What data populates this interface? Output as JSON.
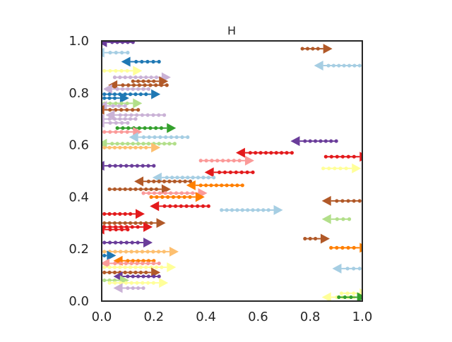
{
  "chart_data": {
    "type": "scatter",
    "title": "H",
    "xlabel": "",
    "ylabel": "",
    "xlim": [
      0.0,
      1.0
    ],
    "ylim": [
      0.0,
      1.0
    ],
    "grid": false,
    "legend": "none",
    "x_ticks": [
      "0.0",
      "0.2",
      "0.4",
      "0.6",
      "0.8",
      "1.0"
    ],
    "y_ticks": [
      "0.0",
      "0.2",
      "0.4",
      "0.6",
      "0.8",
      "1.0"
    ],
    "palette": {
      "lightblue": "#a6cee3",
      "blue": "#1f78b4",
      "lightgreen": "#b2df8a",
      "green": "#33a02c",
      "pink": "#fb9a99",
      "red": "#e31a1c",
      "lightorange": "#fdbf6f",
      "orange": "#ff7f00",
      "lavender": "#cab2d6",
      "purple": "#6a3d9a",
      "yellow": "#ffff99",
      "brown": "#b15928"
    },
    "series": [
      {
        "color": "purple",
        "dir": "left",
        "y": 0.995,
        "x_start": 0.12,
        "x_end": 0.02
      },
      {
        "color": "brown",
        "dir": "right",
        "y": 0.97,
        "x_start": 0.77,
        "x_end": 0.85
      },
      {
        "color": "lightblue",
        "dir": "left",
        "y": 0.955,
        "x_start": 0.1,
        "x_end": 0.01
      },
      {
        "color": "blue",
        "dir": "left",
        "y": 0.92,
        "x_start": 0.22,
        "x_end": 0.11
      },
      {
        "color": "lightblue",
        "dir": "left",
        "y": 0.905,
        "x_start": 0.99,
        "x_end": 0.85
      },
      {
        "color": "yellow",
        "dir": "right",
        "y": 0.885,
        "x_start": 0.01,
        "x_end": 0.12
      },
      {
        "color": "lavender",
        "dir": "right",
        "y": 0.86,
        "x_start": 0.05,
        "x_end": 0.23
      },
      {
        "color": "brown",
        "dir": "right",
        "y": 0.845,
        "x_start": 0.12,
        "x_end": 0.22
      },
      {
        "color": "brown",
        "dir": "left",
        "y": 0.83,
        "x_start": 0.25,
        "x_end": 0.06
      },
      {
        "color": "lavender",
        "dir": "left",
        "y": 0.815,
        "x_start": 0.18,
        "x_end": 0.04
      },
      {
        "color": "blue",
        "dir": "right",
        "y": 0.795,
        "x_start": 0.01,
        "x_end": 0.19
      },
      {
        "color": "blue",
        "dir": "right",
        "y": 0.78,
        "x_start": 0.01,
        "x_end": 0.07
      },
      {
        "color": "lightgreen",
        "dir": "right",
        "y": 0.76,
        "x_start": 0.01,
        "x_end": 0.12
      },
      {
        "color": "lavender",
        "dir": "left",
        "y": 0.75,
        "x_start": 0.09,
        "x_end": 0.02
      },
      {
        "color": "brown",
        "dir": "left",
        "y": 0.735,
        "x_start": 0.14,
        "x_end": 0.01
      },
      {
        "color": "lavender",
        "dir": "left",
        "y": 0.715,
        "x_start": 0.24,
        "x_end": 0.05
      },
      {
        "color": "lavender",
        "dir": "left",
        "y": 0.7,
        "x_start": 0.13,
        "x_end": 0.01
      },
      {
        "color": "lavender",
        "dir": "left",
        "y": 0.685,
        "x_start": 0.1,
        "x_end": 0.01
      },
      {
        "color": "green",
        "dir": "right",
        "y": 0.665,
        "x_start": 0.06,
        "x_end": 0.25
      },
      {
        "color": "pink",
        "dir": "right",
        "y": 0.65,
        "x_start": 0.01,
        "x_end": 0.12
      },
      {
        "color": "lightblue",
        "dir": "left",
        "y": 0.63,
        "x_start": 0.33,
        "x_end": 0.14
      },
      {
        "color": "purple",
        "dir": "left",
        "y": 0.615,
        "x_start": 0.9,
        "x_end": 0.76
      },
      {
        "color": "lightgreen",
        "dir": "left",
        "y": 0.605,
        "x_start": 0.28,
        "x_end": 0.02
      },
      {
        "color": "lightorange",
        "dir": "right",
        "y": 0.59,
        "x_start": 0.01,
        "x_end": 0.19
      },
      {
        "color": "red",
        "dir": "left",
        "y": 0.57,
        "x_start": 0.73,
        "x_end": 0.55
      },
      {
        "color": "red",
        "dir": "right",
        "y": 0.555,
        "x_start": 0.86,
        "x_end": 0.99
      },
      {
        "color": "pink",
        "dir": "right",
        "y": 0.54,
        "x_start": 0.38,
        "x_end": 0.55
      },
      {
        "color": "purple",
        "dir": "left",
        "y": 0.52,
        "x_start": 0.2,
        "x_end": 0.01
      },
      {
        "color": "yellow",
        "dir": "right",
        "y": 0.51,
        "x_start": 0.85,
        "x_end": 0.96
      },
      {
        "color": "red",
        "dir": "left",
        "y": 0.495,
        "x_start": 0.58,
        "x_end": 0.43
      },
      {
        "color": "lightblue",
        "dir": "left",
        "y": 0.475,
        "x_start": 0.43,
        "x_end": 0.23
      },
      {
        "color": "brown",
        "dir": "left",
        "y": 0.46,
        "x_start": 0.34,
        "x_end": 0.16
      },
      {
        "color": "orange",
        "dir": "left",
        "y": 0.445,
        "x_start": 0.54,
        "x_end": 0.36
      },
      {
        "color": "brown",
        "dir": "right",
        "y": 0.43,
        "x_start": 0.03,
        "x_end": 0.23
      },
      {
        "color": "pink",
        "dir": "right",
        "y": 0.415,
        "x_start": 0.16,
        "x_end": 0.37
      },
      {
        "color": "orange",
        "dir": "right",
        "y": 0.4,
        "x_start": 0.19,
        "x_end": 0.36
      },
      {
        "color": "brown",
        "dir": "left",
        "y": 0.385,
        "x_start": 0.99,
        "x_end": 0.88
      },
      {
        "color": "red",
        "dir": "left",
        "y": 0.365,
        "x_start": 0.41,
        "x_end": 0.22
      },
      {
        "color": "lightblue",
        "dir": "right",
        "y": 0.35,
        "x_start": 0.46,
        "x_end": 0.66
      },
      {
        "color": "red",
        "dir": "right",
        "y": 0.335,
        "x_start": 0.01,
        "x_end": 0.13
      },
      {
        "color": "lightgreen",
        "dir": "left",
        "y": 0.315,
        "x_start": 0.95,
        "x_end": 0.88
      },
      {
        "color": "brown",
        "dir": "right",
        "y": 0.3,
        "x_start": 0.01,
        "x_end": 0.21
      },
      {
        "color": "red",
        "dir": "right",
        "y": 0.285,
        "x_start": 0.01,
        "x_end": 0.16
      },
      {
        "color": "red",
        "dir": "left",
        "y": 0.275,
        "x_start": 0.1,
        "x_end": 0.01
      },
      {
        "color": "brown",
        "dir": "right",
        "y": 0.24,
        "x_start": 0.78,
        "x_end": 0.84
      },
      {
        "color": "purple",
        "dir": "right",
        "y": 0.225,
        "x_start": 0.01,
        "x_end": 0.16
      },
      {
        "color": "orange",
        "dir": "right",
        "y": 0.205,
        "x_start": 0.88,
        "x_end": 0.99
      },
      {
        "color": "lightorange",
        "dir": "right",
        "y": 0.19,
        "x_start": 0.01,
        "x_end": 0.26
      },
      {
        "color": "blue",
        "dir": "right",
        "y": 0.175,
        "x_start": 0.01,
        "x_end": 0.02
      },
      {
        "color": "orange",
        "dir": "left",
        "y": 0.155,
        "x_start": 0.2,
        "x_end": 0.08
      },
      {
        "color": "pink",
        "dir": "left",
        "y": 0.145,
        "x_start": 0.22,
        "x_end": 0.03
      },
      {
        "color": "yellow",
        "dir": "right",
        "y": 0.13,
        "x_start": 0.01,
        "x_end": 0.25
      },
      {
        "color": "lightblue",
        "dir": "left",
        "y": 0.125,
        "x_start": 0.99,
        "x_end": 0.92
      },
      {
        "color": "brown",
        "dir": "right",
        "y": 0.11,
        "x_start": 0.01,
        "x_end": 0.19
      },
      {
        "color": "purple",
        "dir": "left",
        "y": 0.095,
        "x_start": 0.22,
        "x_end": 0.08
      },
      {
        "color": "lightgreen",
        "dir": "right",
        "y": 0.08,
        "x_start": 0.01,
        "x_end": 0.07
      },
      {
        "color": "yellow",
        "dir": "right",
        "y": 0.07,
        "x_start": 0.03,
        "x_end": 0.22
      },
      {
        "color": "lavender",
        "dir": "left",
        "y": 0.05,
        "x_start": 0.16,
        "x_end": 0.08
      },
      {
        "color": "yellow",
        "dir": "right",
        "y": 0.03,
        "x_start": 0.92,
        "x_end": 0.99
      },
      {
        "color": "yellow",
        "dir": "left",
        "y": 0.015,
        "x_start": 0.99,
        "x_end": 0.88
      },
      {
        "color": "green",
        "dir": "right",
        "y": 0.015,
        "x_start": 0.91,
        "x_end": 0.98
      }
    ]
  }
}
